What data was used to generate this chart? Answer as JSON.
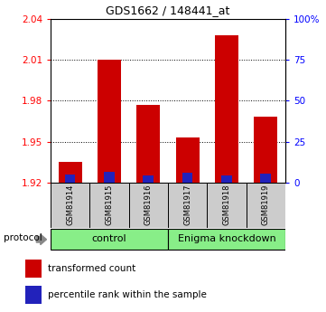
{
  "title": "GDS1662 / 148441_at",
  "samples": [
    "GSM81914",
    "GSM81915",
    "GSM81916",
    "GSM81917",
    "GSM81918",
    "GSM81919"
  ],
  "transformed_counts": [
    1.935,
    2.01,
    1.977,
    1.953,
    2.028,
    1.968
  ],
  "percentile_ranks_pct": [
    5.0,
    6.5,
    4.5,
    6.0,
    4.5,
    5.5
  ],
  "y_min": 1.92,
  "y_max": 2.04,
  "y_ticks": [
    1.92,
    1.95,
    1.98,
    2.01,
    2.04
  ],
  "right_y_ticks": [
    0,
    25,
    50,
    75,
    100
  ],
  "bar_color": "#cc0000",
  "percentile_color": "#2222bb",
  "control_label": "control",
  "knockdown_label": "Enigma knockdown",
  "group_bg_color": "#88ee88",
  "protocol_label": "protocol",
  "legend_bar_label": "transformed count",
  "legend_percentile_label": "percentile rank within the sample",
  "bar_width": 0.6,
  "base_value": 1.92
}
